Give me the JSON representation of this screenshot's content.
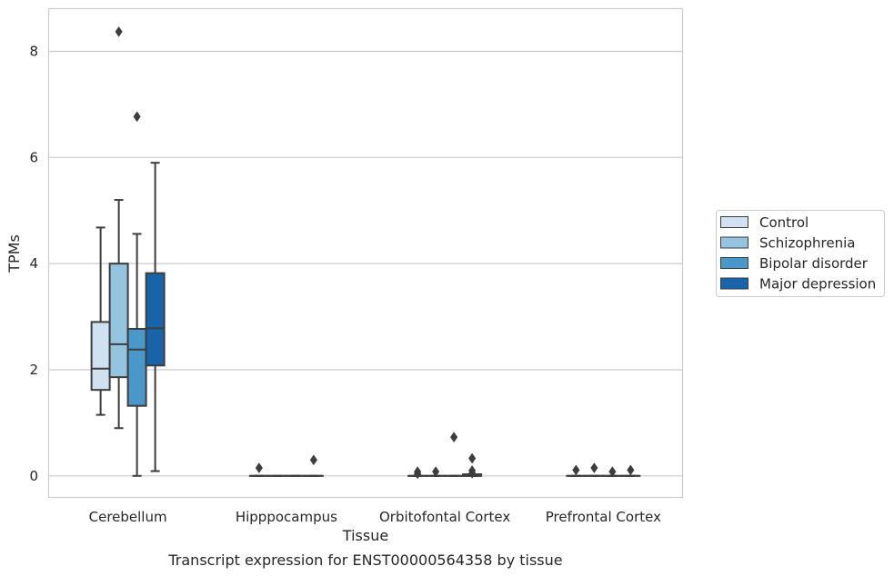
{
  "chart_data": {
    "type": "box",
    "caption": "Transcript expression for ENST00000564358 by tissue",
    "xlabel": "Tissue",
    "ylabel": "TPMs",
    "ylim": [
      -0.4,
      8.8
    ],
    "yticks": [
      0,
      2,
      4,
      6,
      8
    ],
    "grid": "horizontal",
    "legend_position": "right",
    "categories": [
      "Cerebellum",
      "Hipppocampus",
      "Orbitofontal Cortex",
      "Prefrontal Cortex"
    ],
    "series": [
      {
        "name": "Control",
        "color": "#d0e1f2",
        "boxes": [
          {
            "min": 1.15,
            "q1": 1.62,
            "median": 2.02,
            "q3": 2.9,
            "max": 4.68,
            "outliers": []
          },
          {
            "min": 0,
            "q1": 0,
            "median": 0,
            "q3": 0,
            "max": 0,
            "outliers": [
              0.15
            ]
          },
          {
            "min": 0,
            "q1": 0,
            "median": 0,
            "q3": 0,
            "max": 0,
            "outliers": [
              0.08,
              0.04
            ]
          },
          {
            "min": 0,
            "q1": 0,
            "median": 0,
            "q3": 0,
            "max": 0,
            "outliers": [
              0.11
            ]
          }
        ]
      },
      {
        "name": "Schizophrenia",
        "color": "#94c4df",
        "boxes": [
          {
            "min": 0.9,
            "q1": 1.86,
            "median": 2.48,
            "q3": 4.0,
            "max": 5.2,
            "outliers": [
              8.37
            ]
          },
          {
            "min": 0,
            "q1": 0,
            "median": 0,
            "q3": 0,
            "max": 0,
            "outliers": []
          },
          {
            "min": 0,
            "q1": 0,
            "median": 0,
            "q3": 0,
            "max": 0,
            "outliers": [
              0.08
            ]
          },
          {
            "min": 0,
            "q1": 0,
            "median": 0,
            "q3": 0,
            "max": 0,
            "outliers": [
              0.15
            ]
          }
        ]
      },
      {
        "name": "Bipolar disorder",
        "color": "#4a98c9",
        "boxes": [
          {
            "min": 0,
            "q1": 1.32,
            "median": 2.38,
            "q3": 2.77,
            "max": 4.56,
            "outliers": [
              6.77
            ]
          },
          {
            "min": 0,
            "q1": 0,
            "median": 0,
            "q3": 0,
            "max": 0,
            "outliers": []
          },
          {
            "min": 0,
            "q1": 0,
            "median": 0,
            "q3": 0,
            "max": 0,
            "outliers": [
              0.73
            ]
          },
          {
            "min": 0,
            "q1": 0,
            "median": 0,
            "q3": 0,
            "max": 0,
            "outliers": [
              0.08
            ]
          }
        ]
      },
      {
        "name": "Major depression",
        "color": "#1764ab",
        "boxes": [
          {
            "min": 0.09,
            "q1": 2.08,
            "median": 2.78,
            "q3": 3.82,
            "max": 5.9,
            "outliers": []
          },
          {
            "min": 0,
            "q1": 0,
            "median": 0,
            "q3": 0,
            "max": 0,
            "outliers": [
              0.3
            ]
          },
          {
            "min": 0,
            "q1": 0,
            "median": 0,
            "q3": 0.03,
            "max": 0.03,
            "outliers": [
              0.33,
              0.1,
              0.05
            ]
          },
          {
            "min": 0,
            "q1": 0,
            "median": 0,
            "q3": 0,
            "max": 0,
            "outliers": [
              0.11
            ]
          }
        ]
      }
    ]
  }
}
